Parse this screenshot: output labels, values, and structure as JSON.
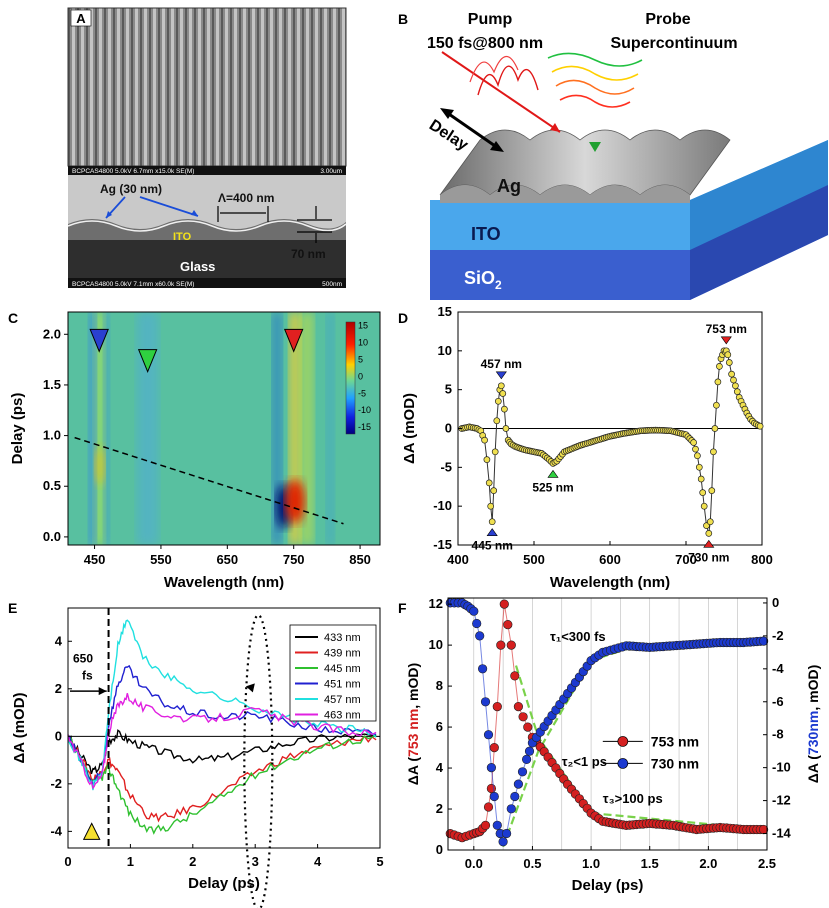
{
  "panels": {
    "A": {
      "letter": "A",
      "sem_top_bar": "BCPCAS4800 5.0kV 6.7mm x15.0k SE(M)",
      "sem_top_scale": "3.00um",
      "label_ag": "Ag (30 nm)",
      "label_lambda": "Λ=400 nm",
      "label_ito": "ITO",
      "label_thickness": "70 nm",
      "label_glass": "Glass",
      "sem_bottom_bar": "BCPCAS4800 5.0kV 7.1mm x60.0k SE(M)",
      "sem_bottom_scale": "500nm"
    },
    "B": {
      "letter": "B",
      "pump_title": "Pump",
      "pump_sub": "150 fs@800 nm",
      "probe_title": "Probe",
      "probe_sub": "Supercontinuum",
      "delay": "Delay",
      "ag": "Ag",
      "ito": "ITO",
      "sio2": "SiO",
      "sio2_sub": "2"
    },
    "C": {
      "letter": "C"
    },
    "D": {
      "letter": "D"
    },
    "E": {
      "letter": "E"
    },
    "F": {
      "letter": "F"
    }
  },
  "chart_data": [
    {
      "panel": "C",
      "type": "heatmap",
      "xlabel": "Wavelength (nm)",
      "ylabel": "Delay (ps)",
      "xticks": [
        "450",
        "550",
        "650",
        "750",
        "850"
      ],
      "xtick_values": [
        450,
        550,
        650,
        750,
        850
      ],
      "yticks": [
        "0.0",
        "0.5",
        "1.0",
        "1.5",
        "2.0"
      ],
      "ytick_values": [
        0,
        0.5,
        1.0,
        1.5,
        2.0
      ],
      "xlim": [
        410,
        880
      ],
      "ylim": [
        -0.08,
        2.22
      ],
      "colorbar_ticks": [
        "15",
        "10",
        "5",
        "0",
        "-5",
        "-10",
        "-15"
      ],
      "colorbar_values": [
        15,
        10,
        5,
        0,
        -5,
        -10,
        -15
      ],
      "colorbar_range": [
        -17,
        16
      ],
      "markers": [
        {
          "wavelength": 457,
          "delay": 1.92,
          "color": "#2a3fd0"
        },
        {
          "wavelength": 530,
          "delay": 1.72,
          "color": "#2fd040"
        },
        {
          "wavelength": 750,
          "delay": 1.92,
          "color": "#e02020"
        }
      ],
      "dashed_line": {
        "x": [
          420,
          825
        ],
        "y": [
          0.98,
          0.13
        ]
      }
    },
    {
      "panel": "D",
      "type": "line",
      "xlabel": "Wavelength (nm)",
      "ylabel": "ΔA (mOD)",
      "xticks": [
        "400",
        "500",
        "600",
        "700",
        "800"
      ],
      "xtick_values": [
        400,
        500,
        600,
        700,
        800
      ],
      "yticks": [
        "15",
        "10",
        "5",
        "0",
        "-5",
        "-10",
        "-15"
      ],
      "ytick_values": [
        15,
        10,
        5,
        0,
        -5,
        -10,
        -15
      ],
      "xlim": [
        400,
        800
      ],
      "ylim": [
        -15,
        15
      ],
      "series": [
        {
          "name": "spectrum",
          "x": [
            405,
            415,
            425,
            430,
            435,
            438,
            441,
            443,
            445,
            447,
            449,
            451,
            453,
            455,
            457,
            459,
            461,
            463,
            466,
            470,
            475,
            480,
            490,
            500,
            510,
            520,
            525,
            530,
            540,
            560,
            580,
            600,
            620,
            640,
            660,
            680,
            700,
            710,
            715,
            720,
            724,
            727,
            730,
            732,
            734,
            736,
            738,
            740,
            742,
            744,
            746,
            748,
            750,
            752,
            753,
            755,
            757,
            760,
            765,
            770,
            775,
            780,
            785,
            790,
            795,
            800
          ],
          "y": [
            0,
            0.2,
            0,
            -0.3,
            -1.5,
            -4,
            -7,
            -10,
            -12,
            -8,
            -3,
            1,
            3.5,
            5,
            5.5,
            4.5,
            2.5,
            0,
            -1.5,
            -2,
            -2.3,
            -2.5,
            -2.8,
            -3,
            -3.2,
            -4,
            -4.5,
            -4.2,
            -3,
            -2.2,
            -1.6,
            -1,
            -0.6,
            -0.3,
            -0.2,
            -0.3,
            -0.8,
            -1.8,
            -3.5,
            -6.5,
            -10,
            -12.5,
            -13.5,
            -12,
            -8,
            -3,
            0,
            3,
            6,
            8,
            9,
            9.5,
            10,
            9.8,
            10,
            9.5,
            8.5,
            7,
            5.5,
            4,
            3,
            2,
            1.2,
            0.7,
            0.4,
            0.2
          ]
        }
      ],
      "annotations": [
        {
          "text": "457 nm",
          "x": 457,
          "y": 5.5,
          "marker_color": "#2a3fd0"
        },
        {
          "text": "445 nm",
          "x": 445,
          "y": -12,
          "marker_color": "#2a3fd0"
        },
        {
          "text": "525 nm",
          "x": 525,
          "y": -4.5,
          "marker_color": "#2fd040"
        },
        {
          "text": "753 nm",
          "x": 753,
          "y": 10,
          "marker_color": "#e02020"
        },
        {
          "text": "730 nm",
          "x": 730,
          "y": -13.5,
          "marker_color": "#e02020"
        }
      ]
    },
    {
      "panel": "E",
      "type": "line",
      "xlabel": "Delay (ps)",
      "ylabel": "ΔA (mOD)",
      "xticks": [
        "0",
        "1",
        "2",
        "3",
        "4",
        "5"
      ],
      "xtick_values": [
        0,
        1,
        2,
        3,
        4,
        5
      ],
      "yticks": [
        "4",
        "2",
        "0",
        "-2",
        "-4"
      ],
      "ytick_values": [
        4,
        2,
        0,
        -2,
        -4
      ],
      "xlim": [
        0,
        5
      ],
      "ylim": [
        -4.7,
        5.4
      ],
      "annotation_650": "650",
      "annotation_fs": "fs",
      "series": [
        {
          "name": "433 nm",
          "color": "#000000",
          "x": [
            0,
            0.2,
            0.4,
            0.55,
            0.65,
            0.8,
            1.0,
            1.3,
            1.7,
            2.1,
            2.5,
            3.0,
            3.5,
            4.0,
            4.5,
            5.0
          ],
          "y": [
            0,
            -0.8,
            -1.5,
            -1.2,
            -0.2,
            0.1,
            -0.2,
            -0.5,
            -0.8,
            -1.0,
            -0.9,
            -0.6,
            -0.3,
            -0.1,
            0,
            0
          ]
        },
        {
          "name": "439 nm",
          "color": "#e02020",
          "x": [
            0,
            0.2,
            0.4,
            0.55,
            0.65,
            0.8,
            1.0,
            1.3,
            1.6,
            2.0,
            2.5,
            3.0,
            3.5,
            4.0,
            4.5,
            5.0
          ],
          "y": [
            0,
            -0.9,
            -1.8,
            -1.5,
            -1.0,
            -1.5,
            -2.5,
            -3.4,
            -3.4,
            -3.0,
            -2.3,
            -1.5,
            -0.9,
            -0.5,
            -0.2,
            0
          ]
        },
        {
          "name": "445 nm",
          "color": "#2fc02f",
          "x": [
            0,
            0.2,
            0.4,
            0.55,
            0.65,
            0.8,
            1.0,
            1.3,
            1.6,
            2.0,
            2.5,
            3.0,
            3.5,
            4.0,
            4.5,
            5.0
          ],
          "y": [
            0,
            -1.0,
            -2.0,
            -1.7,
            -1.3,
            -2.2,
            -3.3,
            -4.0,
            -3.8,
            -3.3,
            -2.5,
            -1.6,
            -1.0,
            -0.5,
            -0.2,
            0
          ]
        },
        {
          "name": "451 nm",
          "color": "#2020d0",
          "x": [
            0,
            0.2,
            0.4,
            0.55,
            0.65,
            0.8,
            0.95,
            1.2,
            1.6,
            2.0,
            2.5,
            3.0,
            3.5,
            4.0,
            4.5,
            5.0
          ],
          "y": [
            0,
            -1.0,
            -2.0,
            -1.5,
            0.5,
            2.2,
            2.9,
            2.0,
            1.3,
            1.0,
            0.8,
            0.9,
            0.6,
            0.3,
            0.2,
            0.1
          ]
        },
        {
          "name": "457 nm",
          "color": "#20e0e0",
          "x": [
            0,
            0.2,
            0.4,
            0.55,
            0.65,
            0.8,
            0.95,
            1.2,
            1.6,
            2.0,
            2.5,
            3.0,
            3.5,
            4.0,
            4.5,
            5.0
          ],
          "y": [
            0,
            -1.0,
            -2.1,
            -1.5,
            1.0,
            3.8,
            5.0,
            3.3,
            2.5,
            2.0,
            1.6,
            1.2,
            0.8,
            0.5,
            0.3,
            0.1
          ]
        },
        {
          "name": "463 nm",
          "color": "#e020e0",
          "x": [
            0,
            0.2,
            0.4,
            0.55,
            0.65,
            0.8,
            0.95,
            1.2,
            1.6,
            2.0,
            2.5,
            3.0,
            3.5,
            4.0,
            4.5,
            5.0
          ],
          "y": [
            0,
            -1.0,
            -2.2,
            -1.6,
            0.2,
            1.3,
            1.7,
            1.2,
            0.9,
            0.7,
            0.8,
            1.1,
            0.7,
            0.4,
            0.2,
            0.1
          ]
        }
      ]
    },
    {
      "panel": "F",
      "type": "scatter",
      "xlabel": "Delay (ps)",
      "ylabel_left_prefix": "ΔA (",
      "ylabel_left_colored": "753 nm",
      "ylabel_left_suffix": ", mOD)",
      "ylabel_right_prefix": "ΔA (",
      "ylabel_right_colored": "730nm",
      "ylabel_right_suffix": ", mOD)",
      "xticks": [
        "0.0",
        "0.5",
        "1.0",
        "1.5",
        "2.0",
        "2.5"
      ],
      "xtick_values": [
        0,
        0.5,
        1.0,
        1.5,
        2.0,
        2.5
      ],
      "yticks_left": [
        "12",
        "10",
        "8",
        "6",
        "4",
        "2",
        "0"
      ],
      "ytick_values_left": [
        12,
        10,
        8,
        6,
        4,
        2,
        0
      ],
      "yticks_right": [
        "0",
        "-2",
        "-4",
        "-6",
        "-8",
        "-10",
        "-12",
        "-14"
      ],
      "ytick_values_right": [
        0,
        -2,
        -4,
        -6,
        -8,
        -10,
        -12,
        -14
      ],
      "xlim": [
        -0.22,
        2.5
      ],
      "ylim_left": [
        0,
        12.3
      ],
      "ylim_right": [
        -15,
        0.3
      ],
      "tau1": "τ₁<300 fs",
      "tau2": "τ₂<1 ps",
      "tau3": "τ₃>100 ps",
      "series": [
        {
          "name": "753 nm",
          "color": "#d42020",
          "axis": "left",
          "x": [
            -0.2,
            -0.1,
            0.0,
            0.05,
            0.1,
            0.15,
            0.2,
            0.23,
            0.26,
            0.29,
            0.32,
            0.35,
            0.38,
            0.42,
            0.46,
            0.5,
            0.6,
            0.7,
            0.8,
            0.9,
            1.0,
            1.1,
            1.3,
            1.5,
            1.7,
            1.9,
            2.1,
            2.3,
            2.5
          ],
          "y": [
            0.8,
            0.6,
            0.8,
            0.9,
            1.2,
            3,
            7,
            10,
            12,
            11,
            10,
            8.5,
            7,
            6.5,
            6,
            5.5,
            4.8,
            4,
            3.2,
            2.5,
            1.8,
            1.4,
            1.2,
            1.3,
            1.2,
            1.0,
            1.1,
            1.0,
            1.0
          ]
        },
        {
          "name": "730 nm",
          "color": "#1c3ad0",
          "axis": "right",
          "x": [
            -0.2,
            -0.1,
            -0.05,
            0.0,
            0.05,
            0.1,
            0.15,
            0.2,
            0.25,
            0.28,
            0.32,
            0.38,
            0.45,
            0.5,
            0.6,
            0.7,
            0.8,
            0.9,
            1.0,
            1.1,
            1.2,
            1.3,
            1.5,
            1.7,
            1.9,
            2.1,
            2.3,
            2.5
          ],
          "y": [
            0,
            0,
            -0.2,
            -0.5,
            -2,
            -6,
            -10,
            -13.5,
            -14.5,
            -14,
            -12.5,
            -11,
            -9.5,
            -8.5,
            -7.5,
            -6.5,
            -5.5,
            -4.5,
            -3.5,
            -3,
            -2.8,
            -2.6,
            -2.7,
            -2.6,
            -2.5,
            -2.4,
            -2.4,
            -2.3
          ]
        }
      ]
    }
  ]
}
